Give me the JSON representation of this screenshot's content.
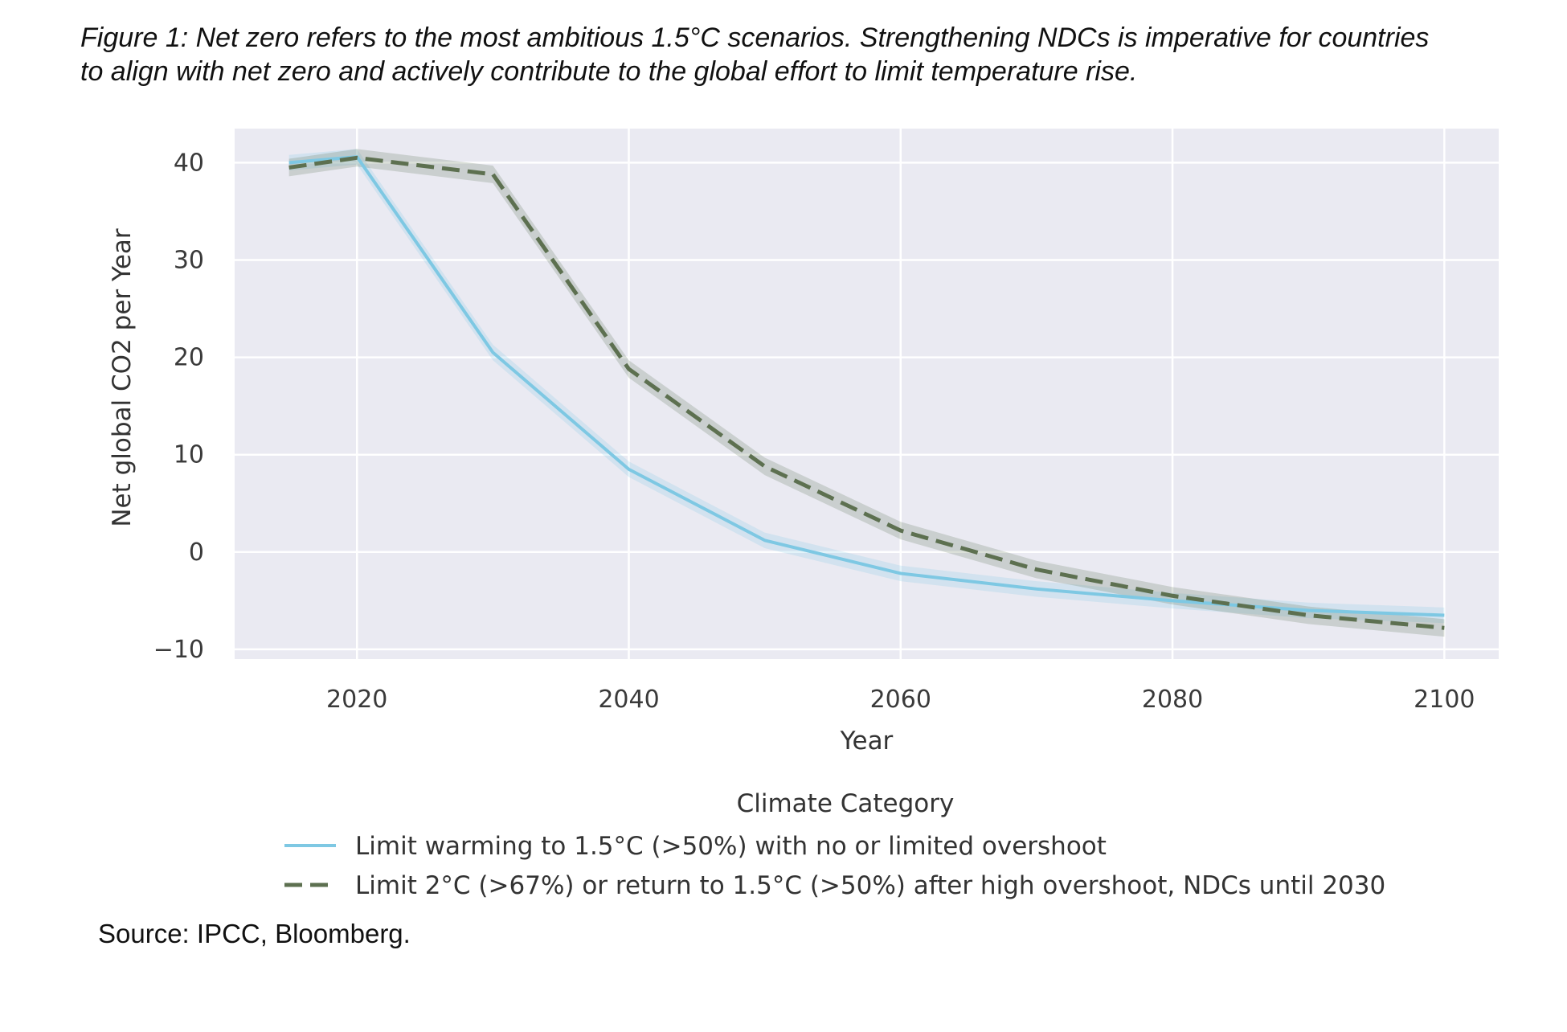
{
  "figure": {
    "caption_line1": "Figure 1: Net zero refers to the most ambitious 1.5°C scenarios. Strengthening NDCs is imperative for countries",
    "caption_line2": "to align with net zero and actively contribute to the global effort to limit temperature rise.",
    "source": "Source: IPCC, Bloomberg."
  },
  "chart_data": {
    "type": "line",
    "title": "",
    "xlabel": "Year",
    "ylabel": "Net global CO2 per Year",
    "xlim": [
      2011,
      2104
    ],
    "ylim": [
      -11,
      43.5
    ],
    "x_ticks": [
      2020,
      2040,
      2060,
      2080,
      2100
    ],
    "y_ticks": [
      -10,
      0,
      10,
      20,
      30,
      40
    ],
    "y_tick_labels": [
      "−10",
      "0",
      "10",
      "20",
      "30",
      "40"
    ],
    "grid": true,
    "background": "#eaeaf2",
    "legend": {
      "title": "Climate Category",
      "placement": "below-center"
    },
    "series": [
      {
        "name": "Limit warming to 1.5°C (>50%) with no or limited overshoot",
        "color": "#7ec8e3",
        "style": "solid",
        "x": [
          2015,
          2020,
          2030,
          2040,
          2050,
          2060,
          2070,
          2080,
          2090,
          2100
        ],
        "y": [
          40.0,
          40.6,
          20.5,
          8.5,
          1.2,
          -2.2,
          -3.8,
          -5.0,
          -6.0,
          -6.5
        ],
        "band": 0.8
      },
      {
        "name": "Limit 2°C (>67%) or return to 1.5°C (>50%) after high overshoot, NDCs until 2030",
        "color": "#5d7050",
        "style": "dashed",
        "x": [
          2015,
          2020,
          2030,
          2040,
          2050,
          2060,
          2070,
          2080,
          2090,
          2100
        ],
        "y": [
          39.5,
          40.5,
          38.8,
          18.8,
          8.8,
          2.2,
          -1.8,
          -4.5,
          -6.5,
          -7.8
        ],
        "band": 0.9
      }
    ]
  }
}
